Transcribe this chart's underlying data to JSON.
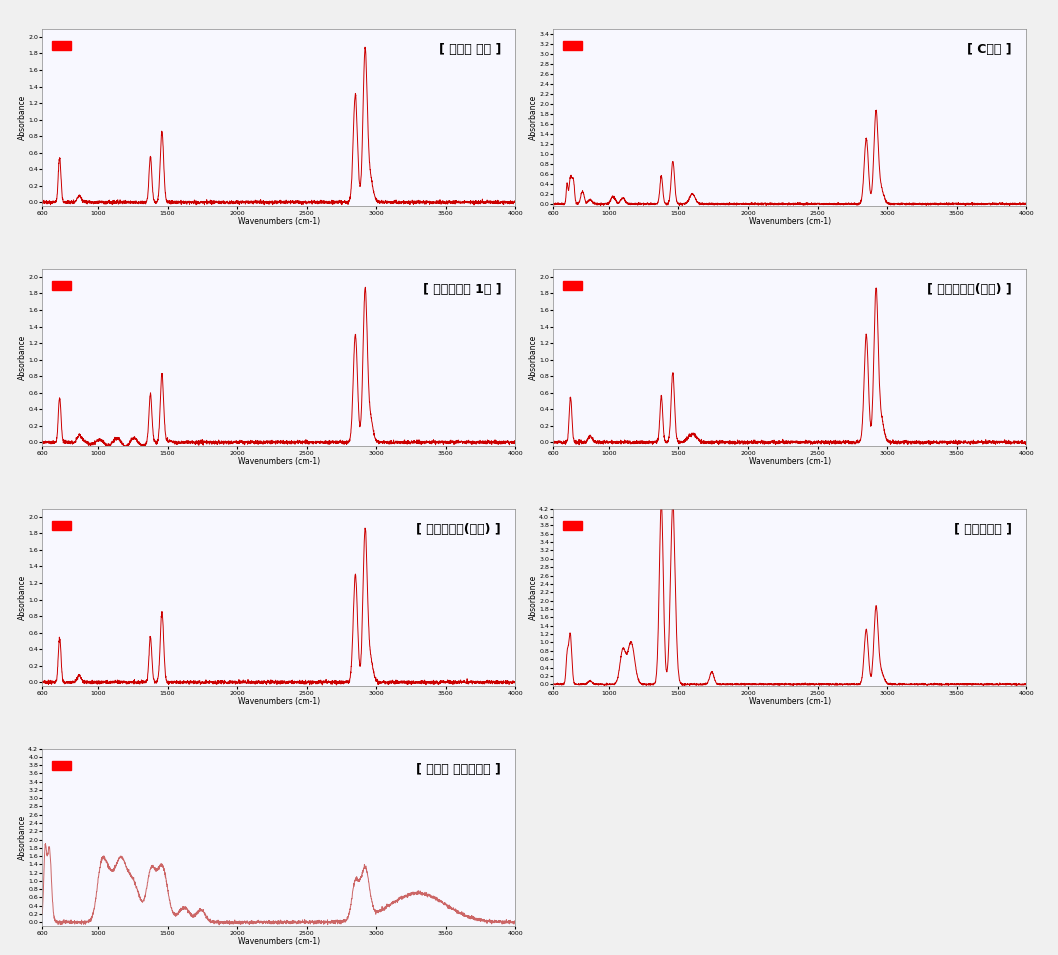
{
  "titles": [
    "[ 선박용 경유 ]",
    "[ C중유 ]",
    "[ 부생연료유 1호 ]",
    "[ 정제연료유(감압) ]",
    "[ 정제연료유(이온) ]",
    "[ 바이오중유 ]",
    "[ 해조류 바이오오일 ]"
  ],
  "x_label": "Wavenumbers (cm-1)",
  "y_label": "Absorbance",
  "x_range": [
    4000,
    600
  ],
  "background_color": "#ffffff",
  "line_color_fuel": "#cc0000",
  "line_color_bio": "#cc6666",
  "title_fontsize": 9,
  "axis_fontsize": 6
}
